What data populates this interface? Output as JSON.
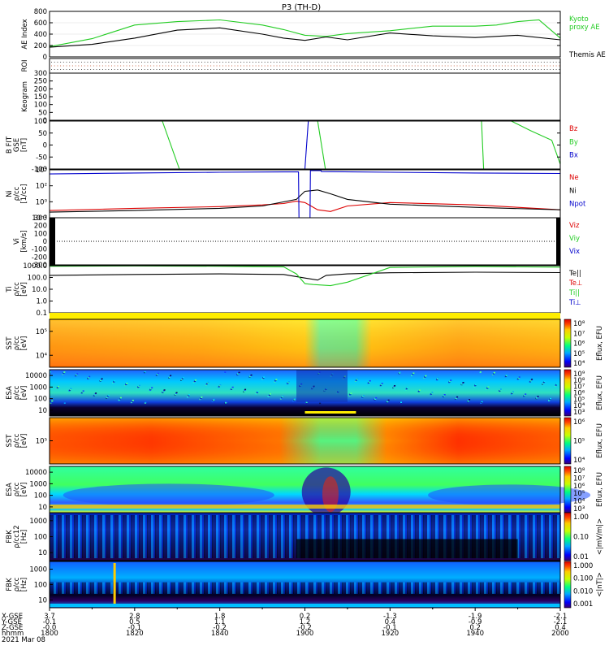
{
  "chart_data": {
    "type": "line",
    "title": "P3 (TH-D)",
    "panels": [
      {
        "id": "ae",
        "ylabel": "AE Index",
        "ylim": [
          0,
          800
        ],
        "yticks": [
          0,
          200,
          400,
          600,
          800
        ],
        "series": [
          {
            "name": "Kyoto proxy AE",
            "label_lines": [
              "Kyoto",
              "proxy AE"
            ],
            "color": "#22cc22",
            "x": [
              1800,
              1810,
              1820,
              1830,
              1840,
              1850,
              1855,
              1900,
              1905,
              1910,
              1920,
              1930,
              1940,
              1945,
              1950,
              1955,
              2000
            ],
            "y": [
              180,
              320,
              560,
              620,
              650,
              560,
              480,
              380,
              360,
              410,
              460,
              540,
              540,
              560,
              620,
              650,
              330
            ]
          },
          {
            "name": "Themis AE",
            "label_lines": [
              "Themis AE"
            ],
            "color": "#000000",
            "x": [
              1800,
              1810,
              1820,
              1830,
              1840,
              1850,
              1855,
              1900,
              1905,
              1910,
              1920,
              1930,
              1940,
              1950,
              2000
            ],
            "y": [
              170,
              220,
              330,
              470,
              510,
              400,
              330,
              290,
              350,
              300,
              420,
              370,
              340,
              380,
              300
            ]
          }
        ]
      },
      {
        "id": "roi",
        "ylabel": "ROI",
        "kind": "dots"
      },
      {
        "id": "keogram",
        "ylabel": "Keogram",
        "ylim": [
          0,
          300
        ],
        "yticks": [
          0,
          50,
          100,
          150,
          200,
          250,
          300
        ]
      },
      {
        "id": "bfit",
        "ylabel_lines": [
          "B FIT",
          "GSE",
          "[nT]"
        ],
        "ylim": [
          -100,
          100
        ],
        "yticks": [
          -100,
          -50,
          0,
          50,
          100
        ],
        "series": [
          {
            "name": "Bz",
            "color": "#dd0000",
            "x": [],
            "y": []
          },
          {
            "name": "By",
            "color": "#22cc22",
            "segments": [
              {
                "x": [
                  1826.5,
                  1830.5
                ],
                "y": [
                  100,
                  -100
                ]
              },
              {
                "x": [
                  1903,
                  1904.8
                ],
                "y": [
                  100,
                  -100
                ]
              },
              {
                "x": [
                  1941.5,
                  1942.0
                ],
                "y": [
                  100,
                  -100
                ]
              },
              {
                "x": [
                  1948.5,
                  1953,
                  1958,
                  2000
                ],
                "y": [
                  100,
                  60,
                  20,
                  -80
                ]
              }
            ]
          },
          {
            "name": "Bx",
            "color": "#0000cc",
            "segments": [
              {
                "x": [
                  1900,
                  1900.8
                ],
                "y": [
                  -100,
                  100
                ]
              }
            ]
          }
        ]
      },
      {
        "id": "ni",
        "ylabel_lines": [
          "Ni",
          "ρ/cc",
          "[1/cc]"
        ],
        "log": true,
        "ylim": [
          0.01,
          10000
        ],
        "tick_labels": [
          "10⁻²",
          "10⁰",
          "10²",
          "10⁴"
        ],
        "series": [
          {
            "name": "Ne",
            "color": "#dd0000",
            "x": [
              1800,
              1820,
              1840,
              1850,
              1855,
              1858,
              1900,
              1903,
              1906,
              1910,
              1920,
              1940,
              1950,
              2000
            ],
            "y": [
              0.08,
              0.15,
              0.25,
              0.4,
              0.6,
              1.2,
              0.8,
              0.1,
              0.06,
              0.3,
              0.8,
              0.4,
              0.2,
              0.1
            ]
          },
          {
            "name": "Ni",
            "color": "#000000",
            "x": [
              1800,
              1820,
              1840,
              1850,
              1858,
              1900,
              1903,
              1906,
              1910,
              1920,
              1940,
              2000
            ],
            "y": [
              0.05,
              0.08,
              0.15,
              0.3,
              2,
              20,
              30,
              10,
              2,
              0.5,
              0.2,
              0.1
            ]
          },
          {
            "name": "Npot",
            "color": "#0000cc",
            "x": [
              1800,
              1820,
              1840,
              1855,
              1858.5,
              1858.6,
              1901.2,
              1901.3,
              1903.8,
              1903.9,
              1920,
              1940,
              2000
            ],
            "y": [
              3000,
              4000,
              5000,
              5500,
              5500,
              0.01,
              0.01,
              8000,
              8000,
              6000,
              5000,
              4000,
              3500
            ]
          }
        ]
      },
      {
        "id": "vi",
        "ylabel_lines": [
          "Vi",
          "[km/s]"
        ],
        "ylim": [
          -300,
          300
        ],
        "yticks": [
          -300,
          -200,
          -100,
          0,
          100,
          200,
          300
        ],
        "series": [
          {
            "name": "Viz",
            "color": "#dd0000",
            "x": [],
            "y": []
          },
          {
            "name": "Viy",
            "color": "#22cc22",
            "x": [],
            "y": []
          },
          {
            "name": "Vix",
            "color": "#0000cc",
            "x": [],
            "y": []
          }
        ]
      },
      {
        "id": "ti",
        "ylabel_lines": [
          "Ti",
          "ρ/cc",
          "[eV]"
        ],
        "log": true,
        "ylim": [
          0.1,
          1000
        ],
        "tick_labels": [
          "0.1",
          "1.0",
          "10.0",
          "100.0",
          "1000.0"
        ],
        "series": [
          {
            "name": "Te||",
            "color": "#000000",
            "x": [
              1800,
              1820,
              1840,
              1855,
              1900,
              1903,
              1905,
              1910,
              1920,
              1940,
              2000
            ],
            "y": [
              150,
              180,
              200,
              180,
              90,
              60,
              150,
              200,
              250,
              280,
              260
            ]
          },
          {
            "name": "Te⊥",
            "color": "#dd0000",
            "x": [],
            "y": []
          },
          {
            "name": "Ti||",
            "color": "#22cc22",
            "x": [
              1800,
              1820,
              1840,
              1855,
              1858,
              1900,
              1902,
              1906,
              1910,
              1920,
              1940,
              2000
            ],
            "y": [
              900,
              950,
              900,
              800,
              200,
              30,
              25,
              20,
              40,
              700,
              850,
              750
            ]
          },
          {
            "name": "Ti⊥",
            "color": "#0000cc",
            "x": [],
            "y": []
          }
        ]
      },
      {
        "id": "sst_e",
        "ylabel_lines": [
          "SST",
          "ρ/cc",
          "[eV]"
        ],
        "tick_labels": [
          "10⁴",
          "10⁵"
        ],
        "kind": "spectrogram"
      },
      {
        "id": "esa_e",
        "ylabel_lines": [
          "ESA",
          "ρ/cc",
          "[eV]"
        ],
        "tick_labels": [
          "10",
          "100",
          "1000",
          "10000"
        ],
        "kind": "spectrogram"
      },
      {
        "id": "sst_i",
        "ylabel_lines": [
          "SST",
          "ρ/cc",
          "[eV]"
        ],
        "tick_labels": [
          "10⁵"
        ],
        "kind": "spectrogram"
      },
      {
        "id": "esa_i",
        "ylabel_lines": [
          "ESA",
          "ρ/cc",
          "[eV]"
        ],
        "tick_labels": [
          "10",
          "100",
          "1000",
          "10000"
        ],
        "kind": "spectrogram"
      },
      {
        "id": "fbk_e",
        "ylabel_lines": [
          "FBK",
          "ρ/cc12",
          "[Hz]"
        ],
        "tick_labels": [
          "10",
          "100",
          "1000"
        ],
        "kind": "spectrogram"
      },
      {
        "id": "fbk_b",
        "ylabel_lines": [
          "FBK",
          "ρ/cc",
          "[Hz]"
        ],
        "tick_labels": [
          "10",
          "100",
          "1000"
        ],
        "kind": "spectrogram"
      }
    ],
    "colorbars": [
      {
        "label": "Eflux, EFU",
        "ticks": [
          "10⁸",
          "10⁷",
          "10⁶",
          "10⁵",
          "10⁴"
        ]
      },
      {
        "label": "Eflux, EFU",
        "ticks": [
          "10⁹",
          "10⁸",
          "10⁷",
          "10⁶",
          "10⁵",
          "10⁴",
          "10³"
        ]
      },
      {
        "label": "Eflux, EFU",
        "ticks": [
          "10⁶",
          "10⁵",
          "10⁴"
        ]
      },
      {
        "label": "Eflux, EFU",
        "ticks": [
          "10⁸",
          "10⁷",
          "10⁶",
          "10⁵",
          "10⁴",
          "10³"
        ]
      },
      {
        "label": "<|mV/m|>",
        "ticks": [
          "1.00",
          "0.10",
          "0.01"
        ]
      },
      {
        "label": "<|nT|>",
        "ticks": [
          "1.000",
          "0.100",
          "0.010",
          "0.001"
        ]
      }
    ],
    "x_axis": {
      "row_labels": [
        "X-GSE",
        "Y-GSE",
        "Z-GSE",
        "hhmm",
        "2021 Mar 08"
      ],
      "ticks": [
        {
          "t": 1800,
          "X": "3.7",
          "Y": "-0.1",
          "Z": "-0.0",
          "hhmm": "1800"
        },
        {
          "t": 1820,
          "X": "2.8",
          "Y": "0.5",
          "Z": "-0.1",
          "hhmm": "1820"
        },
        {
          "t": 1840,
          "X": "1.8",
          "Y": "1.1",
          "Z": "-0.2",
          "hhmm": "1840"
        },
        {
          "t": 1900,
          "X": "0.2",
          "Y": "1.2",
          "Z": "-0.2",
          "hhmm": "1900"
        },
        {
          "t": 1920,
          "X": "-1.3",
          "Y": "0.4",
          "Z": "-0.1",
          "hhmm": "1920"
        },
        {
          "t": 1940,
          "X": "-1.9",
          "Y": "-0.9",
          "Z": "0.2",
          "hhmm": "1940"
        },
        {
          "t": 2000,
          "X": "-2.1",
          "Y": "-2.1",
          "Z": "0.4",
          "hhmm": "2000"
        }
      ]
    }
  }
}
